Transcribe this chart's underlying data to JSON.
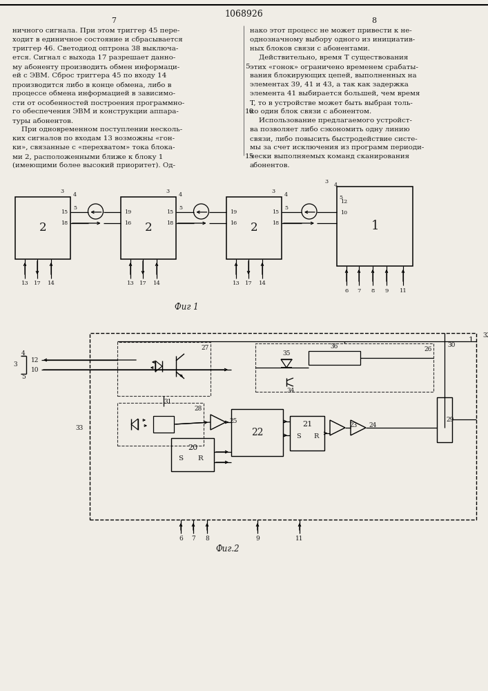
{
  "title": "1068926",
  "page_left": "7",
  "page_right": "8",
  "bg_color": "#f0ede6",
  "text_color": "#1a1a1a",
  "fig1_caption": "Фиг 1",
  "fig2_caption": "Фиг.2",
  "left_col": [
    "ничного сигнала. При этом триггер 45 пере-",
    "ходит в единичное состояние и сбрасывается",
    "триггер 46. Светодиод оптрона 38 выключа-",
    "ется. Сигнал с выхода 17 разрешает данно-",
    "му абоненту производить обмен информаци-",
    "ей с ЭВМ. Сброс триггера 45 по входу 14",
    "производится либо в конце обмена, либо в",
    "процессе обмена информацией в зависимо-",
    "сти от особенностей построения программно-",
    "го обеспечения ЭВМ и конструкции аппара-",
    "туры абонентов.",
    "    При одновременном поступлении несколь-",
    "ких сигналов по входам 13 возможны «гон-",
    "ки», связанные с «перехватом» тока блока-",
    "ми 2, расположенными ближе к блоку 1",
    "(имеющими более высокий приоритет). Од-"
  ],
  "right_col": [
    "нако этот процесс не может привести к не-",
    "однозначному выбору одного из инициатив-",
    "ных блоков связи с абонентами.",
    "    Действительно, время T существования",
    "этих «гонок» ограничено временем срабаты-",
    "вания блокирующих цепей, выполненных на",
    "элементах 39, 41 и 43, а так как задержка",
    "элемента 41 выбирается большей, чем время",
    "T, то в устройстве может быть выбран толь-",
    "ко один блок связи с абонентом.",
    "    Использование предлагаемого устройст-",
    "ва позволяет либо сэкономить одну линию",
    "связи, либо повысить быстродействие систе-",
    "мы за счет исключения из программ периоди-",
    "чески выполняемых команд сканирования",
    "абонентов."
  ]
}
